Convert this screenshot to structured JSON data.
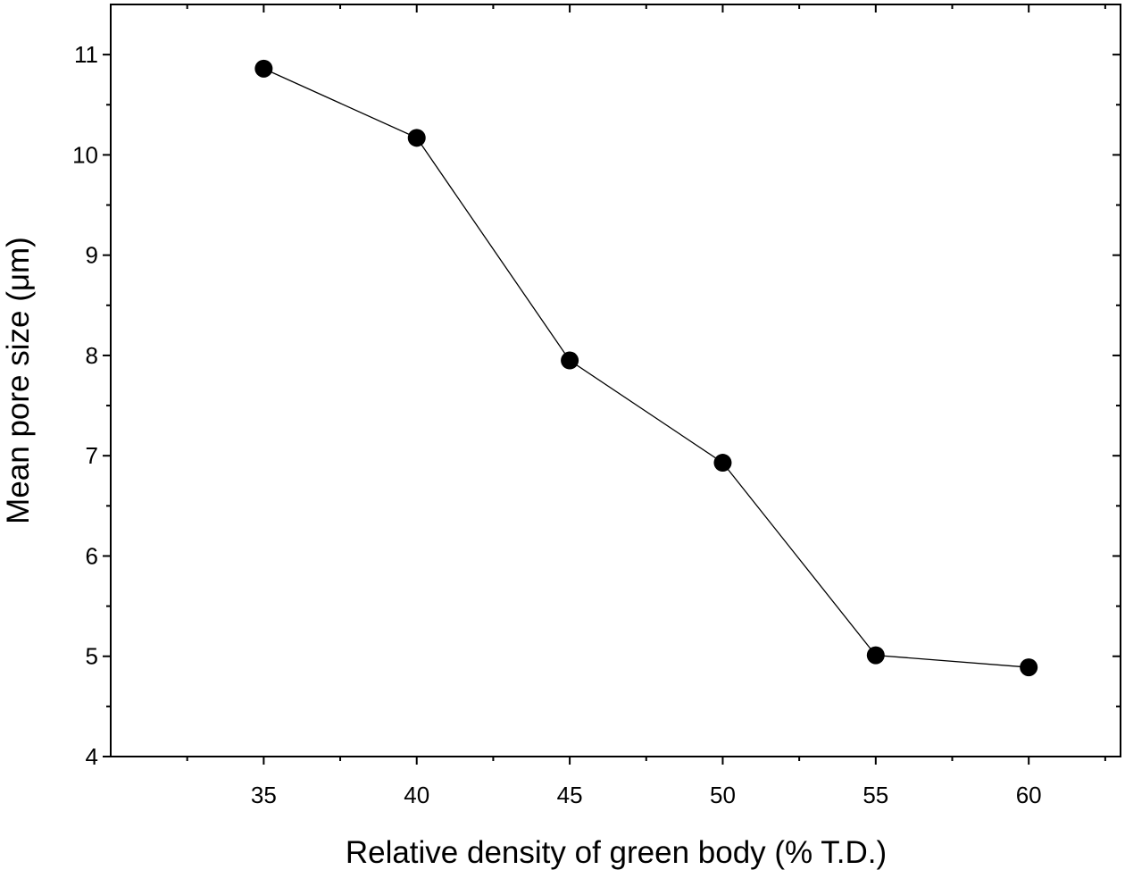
{
  "chart_data": {
    "type": "line",
    "title": "",
    "xlabel": "Relative density of green body (% T.D.)",
    "ylabel": "Mean pore size (μm)",
    "xlim": [
      30,
      63
    ],
    "ylim": [
      4,
      11.5
    ],
    "x_ticks": [
      35,
      40,
      45,
      50,
      55,
      60
    ],
    "y_ticks": [
      4,
      5,
      6,
      7,
      8,
      9,
      10,
      11
    ],
    "grid": false,
    "legend": "none",
    "series": [
      {
        "x": [
          35,
          40,
          45,
          50,
          55,
          60
        ],
        "y": [
          10.86,
          10.17,
          7.95,
          6.93,
          5.01,
          4.89
        ],
        "marker": "filled-circle",
        "color": "#000000"
      }
    ]
  }
}
